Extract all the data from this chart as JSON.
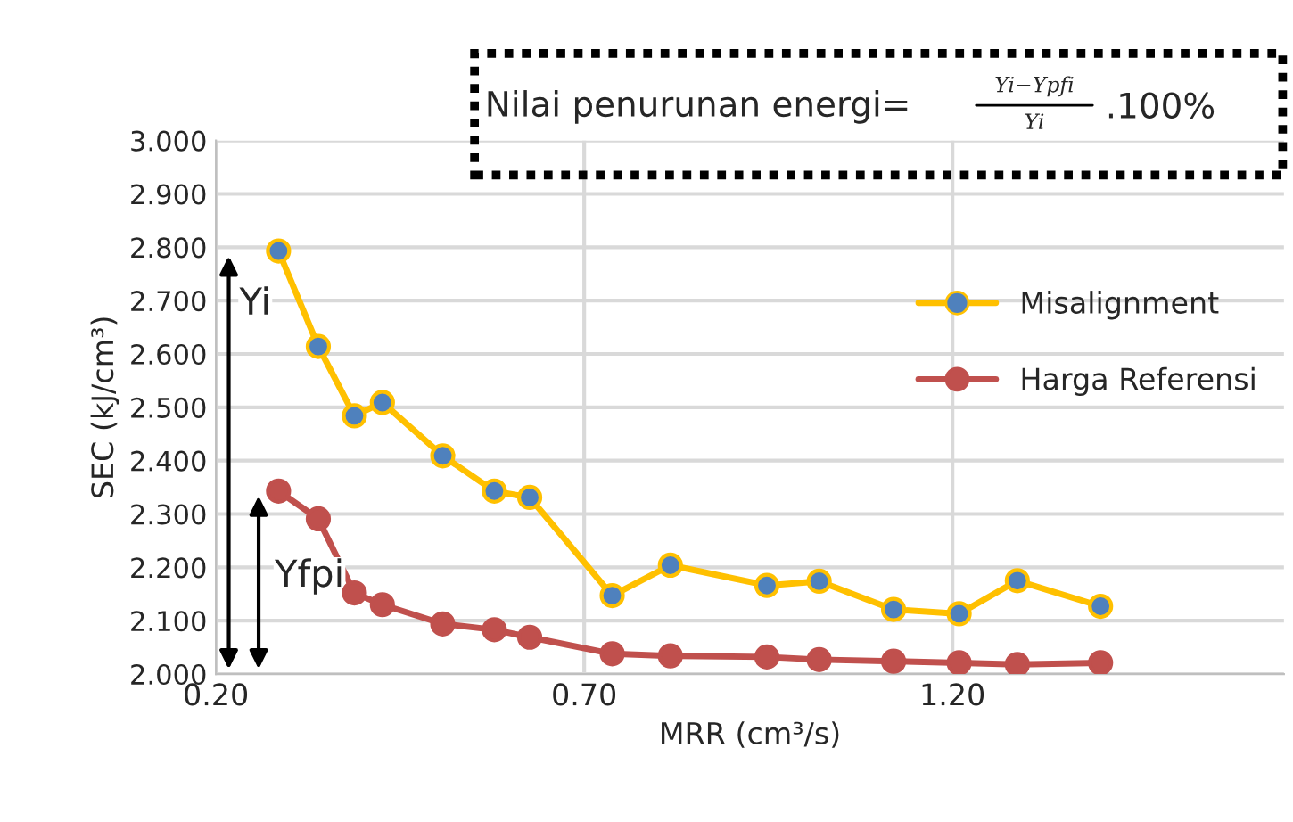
{
  "chart_data": {
    "type": "line",
    "xlabel": "MRR (cm³/s)",
    "ylabel": "SEC (kJ/cm³)",
    "x": [
      0.285,
      0.339,
      0.388,
      0.426,
      0.508,
      0.578,
      0.626,
      0.738,
      0.817,
      0.948,
      1.019,
      1.12,
      1.209,
      1.288,
      1.401
    ],
    "series": [
      {
        "name": "Misalignment",
        "color": "#ffc000",
        "colors": [
          "#4f81bd",
          "#4f81bd",
          "#4f81bd",
          "#4f81bd",
          "#4f81bd",
          "#4f81bd",
          "#4f81bd",
          "#4f81bd",
          "#4f81bd",
          "#4f81bd",
          "#4f81bd",
          "#4f81bd",
          "#4f81bd",
          "#4f81bd",
          "#4f81bd"
        ],
        "values": [
          2.793,
          2.614,
          2.484,
          2.509,
          2.409,
          2.343,
          2.331,
          2.147,
          2.204,
          2.166,
          2.174,
          2.121,
          2.113,
          2.175,
          2.127
        ]
      },
      {
        "name": "Harga Referensi",
        "color": "#c0504d",
        "values": [
          2.343,
          2.291,
          2.152,
          2.13,
          2.094,
          2.083,
          2.069,
          2.038,
          2.034,
          2.032,
          2.027,
          2.024,
          2.021,
          2.018,
          2.021
        ]
      }
    ],
    "xlim": [
      0.2,
      1.65
    ],
    "xticks": [
      {
        "value": 0.2,
        "label": "0.20"
      },
      {
        "value": 0.7,
        "label": "0.70"
      },
      {
        "value": 1.2,
        "label": "1.20"
      }
    ],
    "ylim": [
      2.0,
      3.0
    ],
    "yticks": [
      {
        "value": 2.0,
        "label": "2.000"
      },
      {
        "value": 2.1,
        "label": "2.100"
      },
      {
        "value": 2.2,
        "label": "2.200"
      },
      {
        "value": 2.3,
        "label": "2.300"
      },
      {
        "value": 2.4,
        "label": "2.400"
      },
      {
        "value": 2.5,
        "label": "2.500"
      },
      {
        "value": 2.6,
        "label": "2.600"
      },
      {
        "value": 2.7,
        "label": "2.700"
      },
      {
        "value": 2.8,
        "label": "2.800"
      },
      {
        "value": 2.9,
        "label": "2.900"
      },
      {
        "value": 3.0,
        "label": "3.000"
      }
    ],
    "grid": true,
    "legend": "right",
    "marker": "circle",
    "line_style": "solid",
    "annotations": [
      "Yi",
      "Yfpi",
      "Nilai penurunan energi=",
      "Yi−Ypfi",
      "Yi",
      ".100%"
    ]
  }
}
